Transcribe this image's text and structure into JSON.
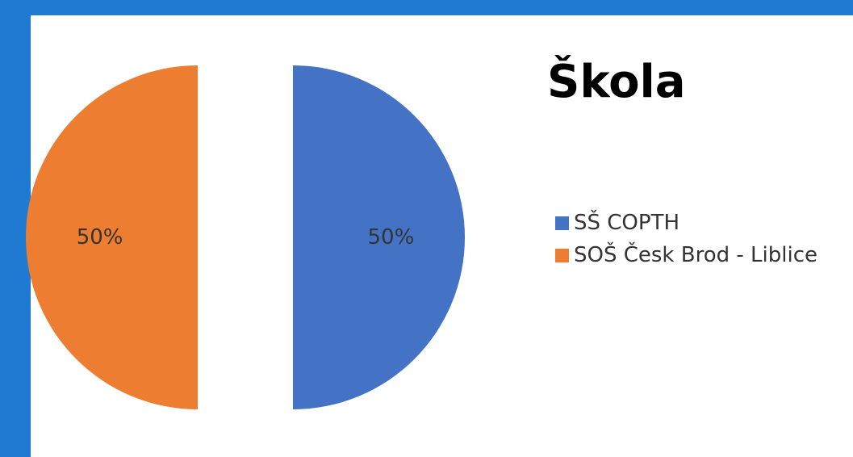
{
  "chart_data": {
    "type": "pie",
    "title": "Škola",
    "legend_position": "right",
    "slices": [
      {
        "name": "SŠ COPTH",
        "value": 50,
        "label": "50%",
        "color": "#4472c4"
      },
      {
        "name": "SOŠ Česk Brod - Liblice",
        "value": 50,
        "label": "50%",
        "color": "#ed7d31"
      }
    ]
  },
  "colors": {
    "frame": "#1f7bd1",
    "panel": "#ffffff"
  }
}
